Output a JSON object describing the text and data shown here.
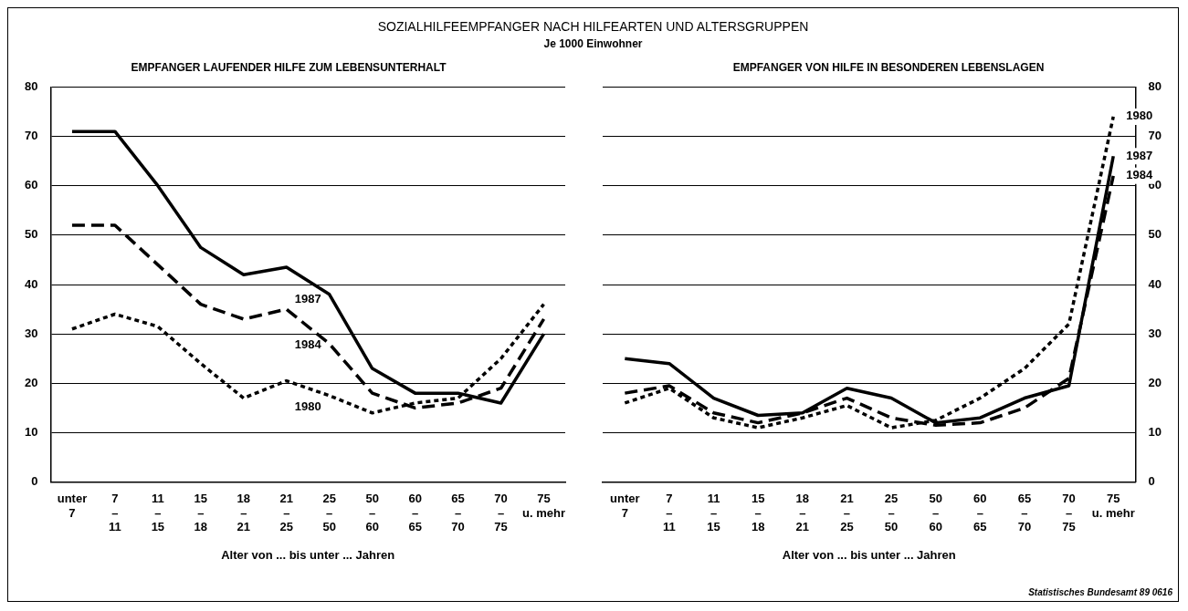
{
  "chart_data": [
    {
      "type": "line",
      "title": "EMPFANGER LAUFENDER HILFE ZUM LEBENSUNTERHALT",
      "xlabel": "Alter von ... bis unter ... Jahren",
      "annotations": [
        "SOZIALHILFEEMPFANGER NACH HILFEARTEN UND ALTERSGRUPPEN",
        "Je 1000 Einwohner"
      ],
      "categories": [
        "unter 7",
        "7 – 11",
        "11 – 15",
        "15 – 18",
        "18 – 21",
        "21 – 25",
        "25 – 50",
        "50 – 60",
        "60 – 65",
        "65 – 70",
        "70 – 75",
        "75 u. mehr"
      ],
      "series": [
        {
          "name": "1987",
          "color": "#000000",
          "line_style": "solid",
          "values": [
            71,
            71,
            60,
            47.5,
            42,
            43.5,
            38,
            23,
            18,
            18,
            16,
            30
          ]
        },
        {
          "name": "1984",
          "color": "#000000",
          "line_style": "dashed",
          "values": [
            52,
            52,
            44,
            36,
            33,
            35,
            28,
            18,
            15,
            16,
            19,
            33
          ]
        },
        {
          "name": "1980",
          "color": "#000000",
          "line_style": "dotted",
          "values": [
            31,
            34,
            31.5,
            24,
            17,
            20.5,
            17.5,
            14,
            16,
            17,
            25,
            36
          ]
        }
      ],
      "ylim": [
        0,
        80
      ],
      "yticks": [
        0,
        10,
        20,
        30,
        40,
        50,
        60,
        70,
        80
      ],
      "grid": "y",
      "legend": false,
      "marker": "none"
    },
    {
      "type": "line",
      "title": "EMPFANGER VON HILFE IN BESONDEREN LEBENSLAGEN",
      "xlabel": "Alter von ... bis unter ... Jahren",
      "annotations": [
        "Statistisches Bundesamt 89 0616"
      ],
      "categories": [
        "unter 7",
        "7 – 11",
        "11 – 15",
        "15 – 18",
        "18 – 21",
        "21 – 25",
        "25 – 50",
        "50 – 60",
        "60 – 65",
        "65 – 70",
        "70 – 75",
        "75 u. mehr"
      ],
      "series": [
        {
          "name": "1980",
          "color": "#000000",
          "line_style": "dotted",
          "values": [
            16,
            19,
            13,
            11,
            13,
            15.5,
            11,
            12.5,
            17,
            23,
            32,
            74
          ]
        },
        {
          "name": "1987",
          "color": "#000000",
          "line_style": "solid",
          "values": [
            25,
            24,
            17,
            13.5,
            14,
            19,
            17,
            12,
            13,
            17,
            19.5,
            66
          ]
        },
        {
          "name": "1984",
          "color": "#000000",
          "line_style": "dashed",
          "values": [
            18,
            19.5,
            14,
            12,
            14,
            17,
            13,
            11.5,
            12,
            15,
            21,
            62
          ]
        }
      ],
      "ylim": [
        0,
        80
      ],
      "yticks": [
        0,
        10,
        20,
        30,
        40,
        50,
        60,
        70,
        80
      ],
      "grid": "y",
      "legend": false,
      "marker": "none"
    }
  ]
}
